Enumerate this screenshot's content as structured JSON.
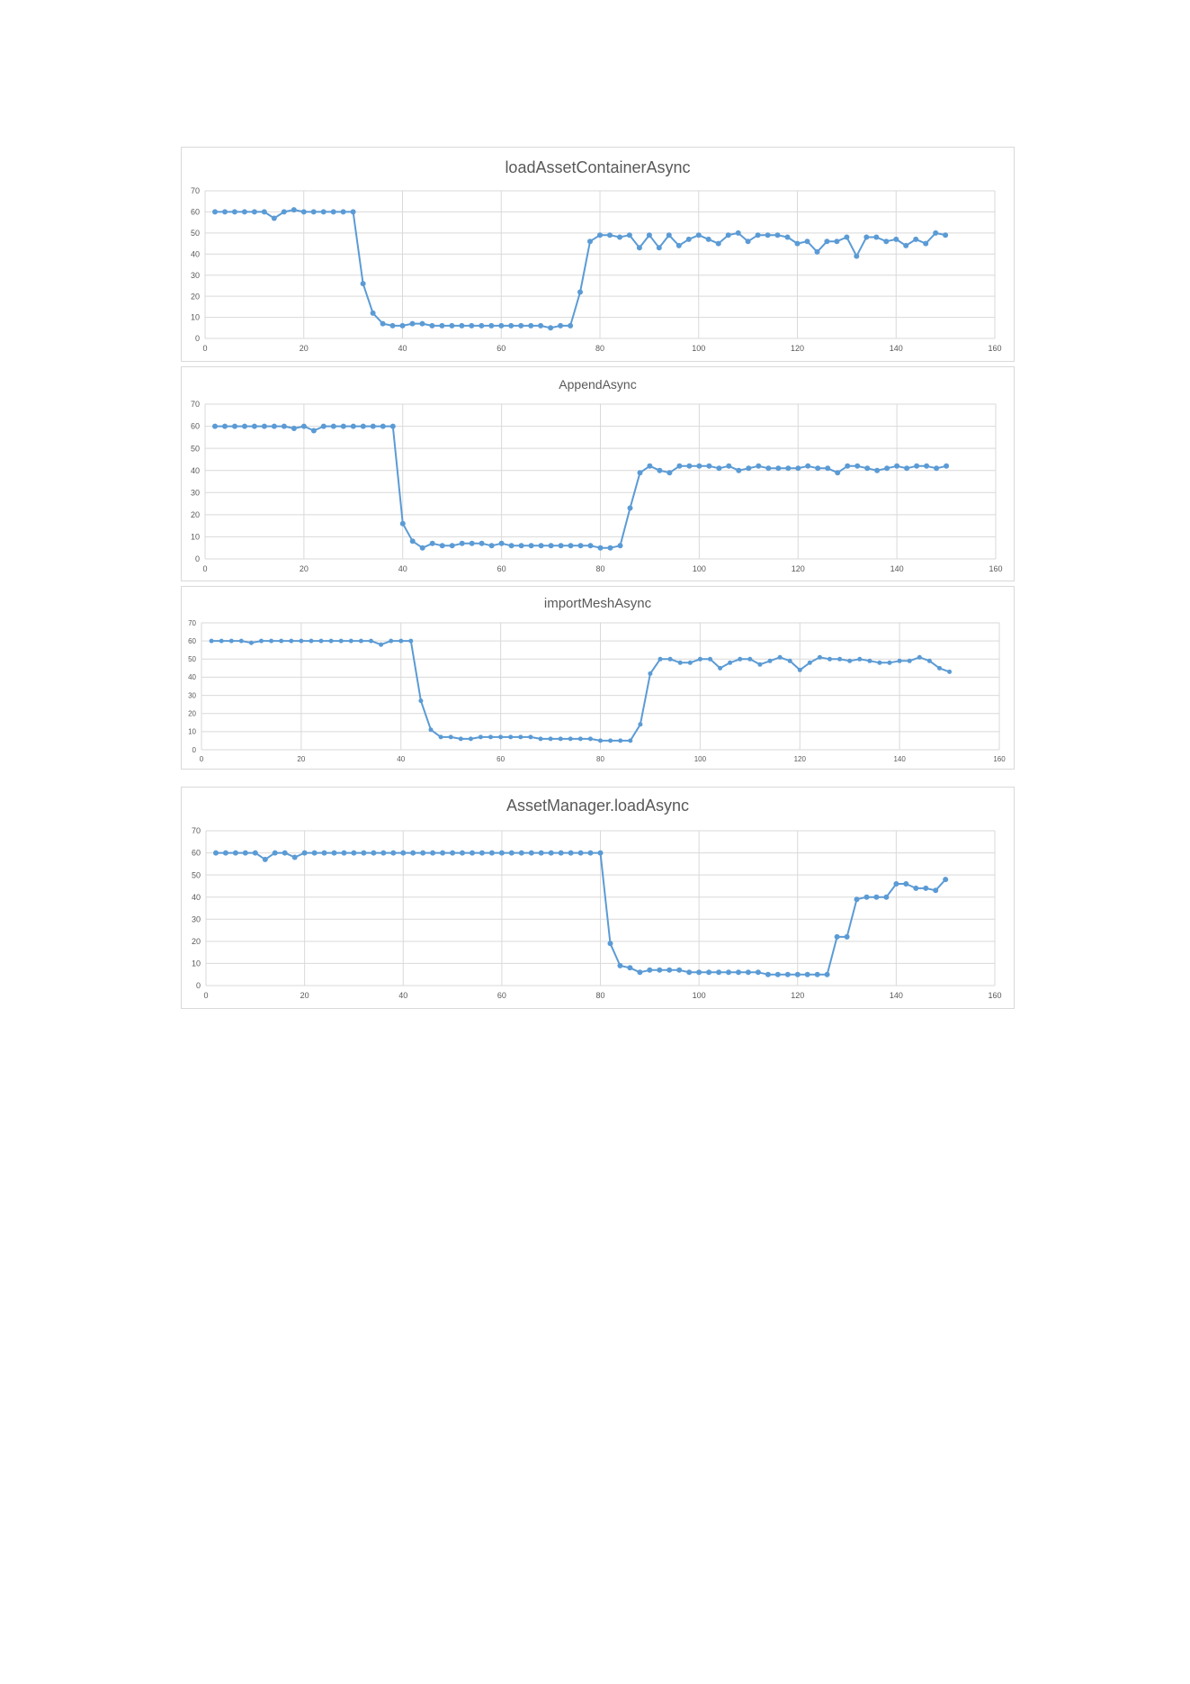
{
  "colors": {
    "series": "#5b9bd5",
    "grid": "#d9d9d9",
    "text": "#595959",
    "border": "#d9d9d9"
  },
  "chart_data": [
    {
      "type": "line",
      "title": "loadAssetContainerAsync",
      "xlim": [
        0,
        160
      ],
      "ylim": [
        0,
        70
      ],
      "xticks": [
        0,
        20,
        40,
        60,
        80,
        100,
        120,
        140,
        160
      ],
      "yticks": [
        0,
        10,
        20,
        30,
        40,
        50,
        60,
        70
      ],
      "grid": true,
      "legend": "none",
      "series": [
        {
          "x": [
            2,
            4,
            6,
            8,
            10,
            12,
            14,
            16,
            18,
            20,
            22,
            24,
            26,
            28,
            30,
            32,
            34,
            36,
            38,
            40,
            42,
            44,
            46,
            48,
            50,
            52,
            54,
            56,
            58,
            60,
            62,
            64,
            66,
            68,
            70,
            72,
            74,
            76,
            78,
            80,
            82,
            84,
            86,
            88,
            90,
            92,
            94,
            96,
            98,
            100,
            102,
            104,
            106,
            108,
            110,
            112,
            114,
            116,
            118,
            120,
            122,
            124,
            126,
            128,
            130,
            132,
            134,
            136,
            138,
            140,
            142,
            144,
            146,
            148,
            150
          ],
          "values": [
            60,
            60,
            60,
            60,
            60,
            60,
            57,
            60,
            61,
            60,
            60,
            60,
            60,
            60,
            60,
            26,
            12,
            7,
            6,
            6,
            7,
            7,
            6,
            6,
            6,
            6,
            6,
            6,
            6,
            6,
            6,
            6,
            6,
            6,
            5,
            6,
            6,
            22,
            46,
            49,
            49,
            48,
            49,
            43,
            49,
            43,
            49,
            44,
            47,
            49,
            47,
            45,
            49,
            50,
            46,
            49,
            49,
            49,
            48,
            45,
            46,
            41,
            46,
            46,
            48,
            39,
            48,
            48,
            46,
            47,
            44,
            47,
            45,
            50,
            49
          ]
        }
      ]
    },
    {
      "type": "line",
      "title": "AppendAsync",
      "xlim": [
        0,
        160
      ],
      "ylim": [
        0,
        70
      ],
      "xticks": [
        0,
        20,
        40,
        60,
        80,
        100,
        120,
        140,
        160
      ],
      "yticks": [
        0,
        10,
        20,
        30,
        40,
        50,
        60,
        70
      ],
      "grid": true,
      "legend": "none",
      "series": [
        {
          "x": [
            2,
            4,
            6,
            8,
            10,
            12,
            14,
            16,
            18,
            20,
            22,
            24,
            26,
            28,
            30,
            32,
            34,
            36,
            38,
            40,
            42,
            44,
            46,
            48,
            50,
            52,
            54,
            56,
            58,
            60,
            62,
            64,
            66,
            68,
            70,
            72,
            74,
            76,
            78,
            80,
            82,
            84,
            86,
            88,
            90,
            92,
            94,
            96,
            98,
            100,
            102,
            104,
            106,
            108,
            110,
            112,
            114,
            116,
            118,
            120,
            122,
            124,
            126,
            128,
            130,
            132,
            134,
            136,
            138,
            140,
            142,
            144,
            146,
            148,
            150
          ],
          "values": [
            60,
            60,
            60,
            60,
            60,
            60,
            60,
            60,
            59,
            60,
            58,
            60,
            60,
            60,
            60,
            60,
            60,
            60,
            60,
            16,
            8,
            5,
            7,
            6,
            6,
            7,
            7,
            7,
            6,
            7,
            6,
            6,
            6,
            6,
            6,
            6,
            6,
            6,
            6,
            5,
            5,
            6,
            23,
            39,
            42,
            40,
            39,
            42,
            42,
            42,
            42,
            41,
            42,
            40,
            41,
            42,
            41,
            41,
            41,
            41,
            42,
            41,
            41,
            39,
            42,
            42,
            41,
            40,
            41,
            42,
            41,
            42,
            42,
            41,
            42
          ]
        }
      ]
    },
    {
      "type": "line",
      "title": "importMeshAsync",
      "xlim": [
        0,
        160
      ],
      "ylim": [
        0,
        70
      ],
      "xticks": [
        0,
        20,
        40,
        60,
        80,
        100,
        120,
        140,
        160
      ],
      "yticks": [
        0,
        10,
        20,
        30,
        40,
        50,
        60,
        70
      ],
      "grid": true,
      "legend": "none",
      "series": [
        {
          "x": [
            2,
            4,
            6,
            8,
            10,
            12,
            14,
            16,
            18,
            20,
            22,
            24,
            26,
            28,
            30,
            32,
            34,
            36,
            38,
            40,
            42,
            44,
            46,
            48,
            50,
            52,
            54,
            56,
            58,
            60,
            62,
            64,
            66,
            68,
            70,
            72,
            74,
            76,
            78,
            80,
            82,
            84,
            86,
            88,
            90,
            92,
            94,
            96,
            98,
            100,
            102,
            104,
            106,
            108,
            110,
            112,
            114,
            116,
            118,
            120,
            122,
            124,
            126,
            128,
            130,
            132,
            134,
            136,
            138,
            140,
            142,
            144,
            146,
            148,
            150
          ],
          "values": [
            60,
            60,
            60,
            60,
            59,
            60,
            60,
            60,
            60,
            60,
            60,
            60,
            60,
            60,
            60,
            60,
            60,
            58,
            60,
            60,
            60,
            27,
            11,
            7,
            7,
            6,
            6,
            7,
            7,
            7,
            7,
            7,
            7,
            6,
            6,
            6,
            6,
            6,
            6,
            5,
            5,
            5,
            5,
            14,
            42,
            50,
            50,
            48,
            48,
            50,
            50,
            45,
            48,
            50,
            50,
            47,
            49,
            51,
            49,
            44,
            48,
            51,
            50,
            50,
            49,
            50,
            49,
            48,
            48,
            49,
            49,
            51,
            49,
            45,
            43
          ]
        }
      ]
    },
    {
      "type": "line",
      "title": "AssetManager.loadAsync",
      "xlim": [
        0,
        160
      ],
      "ylim": [
        0,
        70
      ],
      "xticks": [
        0,
        20,
        40,
        60,
        80,
        100,
        120,
        140,
        160
      ],
      "yticks": [
        0,
        10,
        20,
        30,
        40,
        50,
        60,
        70
      ],
      "grid": true,
      "legend": "none",
      "series": [
        {
          "x": [
            2,
            4,
            6,
            8,
            10,
            12,
            14,
            16,
            18,
            20,
            22,
            24,
            26,
            28,
            30,
            32,
            34,
            36,
            38,
            40,
            42,
            44,
            46,
            48,
            50,
            52,
            54,
            56,
            58,
            60,
            62,
            64,
            66,
            68,
            70,
            72,
            74,
            76,
            78,
            80,
            82,
            84,
            86,
            88,
            90,
            92,
            94,
            96,
            98,
            100,
            102,
            104,
            106,
            108,
            110,
            112,
            114,
            116,
            118,
            120,
            122,
            124,
            126,
            128,
            130,
            132,
            134,
            136,
            138,
            140,
            142,
            144,
            146,
            148,
            150
          ],
          "values": [
            60,
            60,
            60,
            60,
            60,
            57,
            60,
            60,
            58,
            60,
            60,
            60,
            60,
            60,
            60,
            60,
            60,
            60,
            60,
            60,
            60,
            60,
            60,
            60,
            60,
            60,
            60,
            60,
            60,
            60,
            60,
            60,
            60,
            60,
            60,
            60,
            60,
            60,
            60,
            60,
            19,
            9,
            8,
            6,
            7,
            7,
            7,
            7,
            6,
            6,
            6,
            6,
            6,
            6,
            6,
            6,
            5,
            5,
            5,
            5,
            5,
            5,
            5,
            22,
            22,
            39,
            40,
            40,
            40,
            46,
            46,
            44,
            44,
            43,
            48
          ]
        }
      ]
    }
  ]
}
